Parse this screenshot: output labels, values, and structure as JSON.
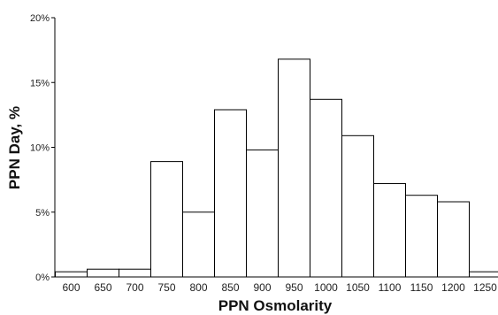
{
  "chart_data": {
    "type": "bar",
    "xlabel": "PPN Osmolarity",
    "ylabel": "PPN Day, %",
    "y_tick_labels": [
      "0%",
      "5%",
      "10%",
      "15%",
      "20%"
    ],
    "y_ticks": [
      0,
      5,
      10,
      15,
      20
    ],
    "ylim": [
      0,
      20
    ],
    "categories": [
      "600",
      "650",
      "700",
      "750",
      "800",
      "850",
      "900",
      "950",
      "1000",
      "1050",
      "1100",
      "1150",
      "1200",
      "1250"
    ],
    "values": [
      0.4,
      0.6,
      0.6,
      8.9,
      5.0,
      12.9,
      9.8,
      16.8,
      13.7,
      10.9,
      7.2,
      6.3,
      5.8,
      0.4
    ],
    "grid": false,
    "legend": "none",
    "bar_fill": "#ffffff",
    "bar_stroke": "#000000"
  }
}
